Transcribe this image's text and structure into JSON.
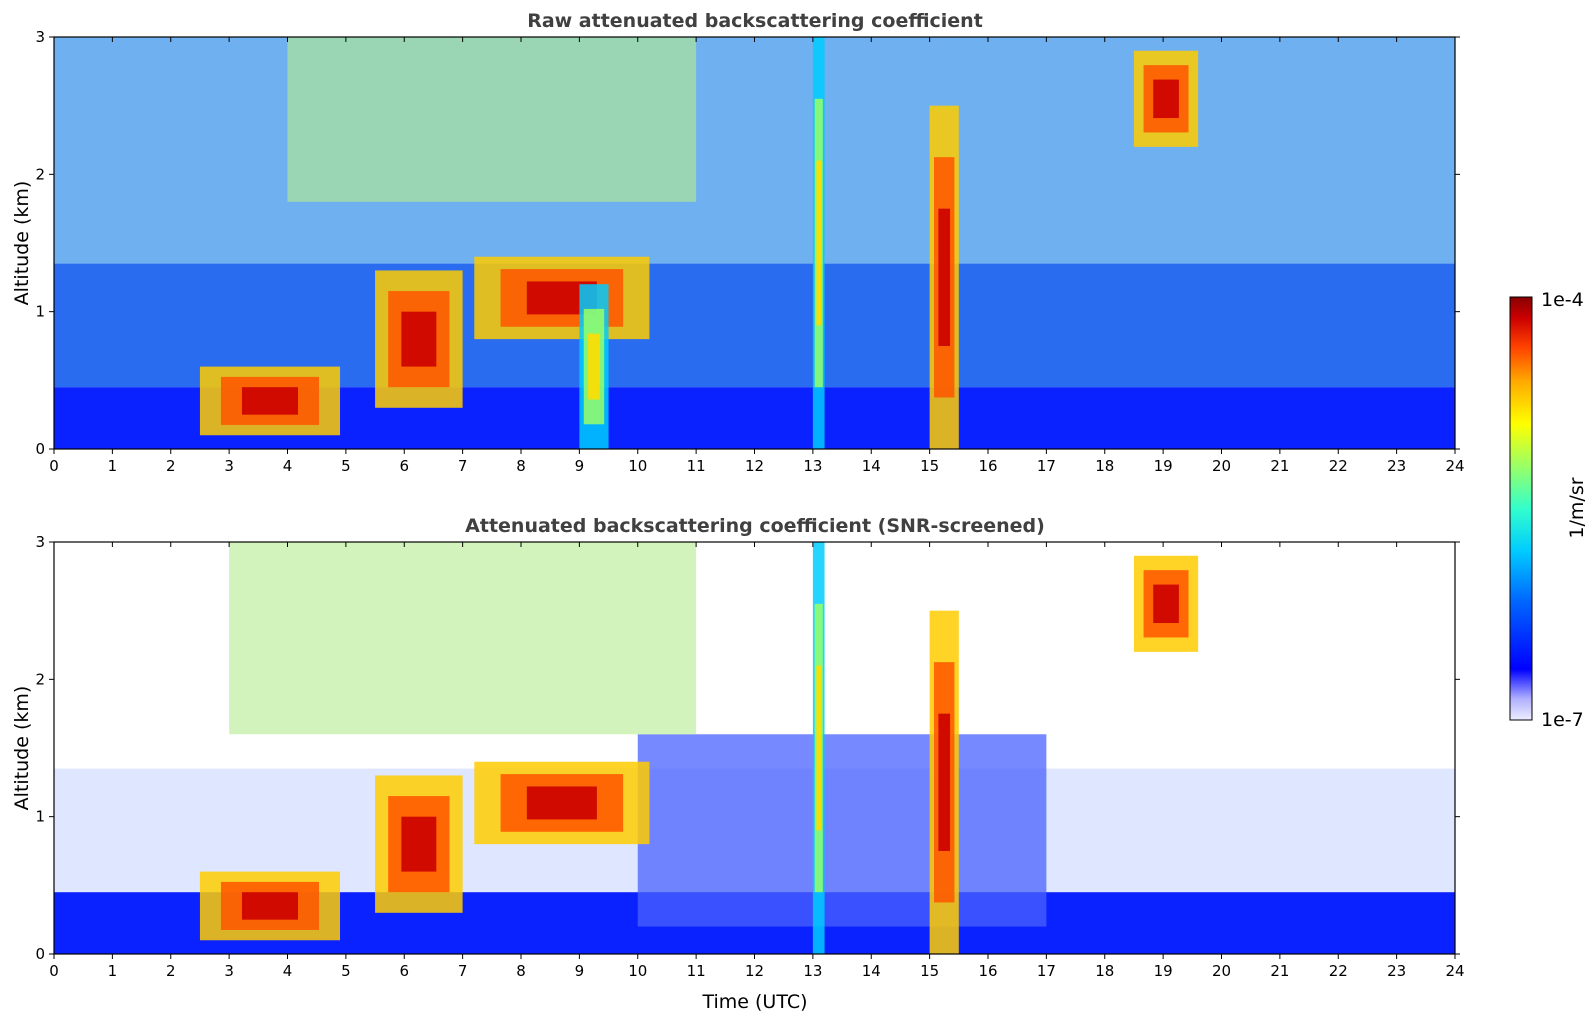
{
  "chart_data": [
    {
      "type": "heatmap",
      "title": "Raw attenuated backscattering coefficient",
      "xlabel": "",
      "ylabel": "Altitude (km)",
      "xlim": [
        0,
        24
      ],
      "ylim": [
        0,
        3
      ],
      "x_ticks": [
        "0",
        "1",
        "2",
        "3",
        "4",
        "5",
        "6",
        "7",
        "8",
        "9",
        "10",
        "11",
        "12",
        "13",
        "14",
        "15",
        "16",
        "17",
        "18",
        "19",
        "20",
        "21",
        "22",
        "23",
        "24"
      ],
      "y_ticks": [
        "0",
        "1",
        "2",
        "3"
      ],
      "features": [
        {
          "t": [
            2.5,
            4.9
          ],
          "alt": [
            0.1,
            0.6
          ],
          "level": "high"
        },
        {
          "t": [
            5.5,
            7.0
          ],
          "alt": [
            0.3,
            1.3
          ],
          "level": "high"
        },
        {
          "t": [
            7.2,
            10.2
          ],
          "alt": [
            0.8,
            1.4
          ],
          "level": "high"
        },
        {
          "t": [
            9.0,
            9.5
          ],
          "alt": [
            0.0,
            1.2
          ],
          "level": "medium"
        },
        {
          "t": [
            13.0,
            13.2
          ],
          "alt": [
            0.0,
            3.0
          ],
          "level": "medium"
        },
        {
          "t": [
            15.0,
            15.5
          ],
          "alt": [
            0.0,
            2.5
          ],
          "level": "high"
        },
        {
          "t": [
            18.5,
            19.6
          ],
          "alt": [
            2.2,
            2.9
          ],
          "level": "high"
        }
      ]
    },
    {
      "type": "heatmap",
      "title": "Attenuated backscattering coefficient (SNR-screened)",
      "xlabel": "Time (UTC)",
      "ylabel": "Altitude (km)",
      "xlim": [
        0,
        24
      ],
      "ylim": [
        0,
        3
      ],
      "x_ticks": [
        "0",
        "1",
        "2",
        "3",
        "4",
        "5",
        "6",
        "7",
        "8",
        "9",
        "10",
        "11",
        "12",
        "13",
        "14",
        "15",
        "16",
        "17",
        "18",
        "19",
        "20",
        "21",
        "22",
        "23",
        "24"
      ],
      "y_ticks": [
        "0",
        "1",
        "2",
        "3"
      ],
      "features": [
        {
          "t": [
            2.5,
            4.9
          ],
          "alt": [
            0.1,
            0.6
          ],
          "level": "high"
        },
        {
          "t": [
            5.5,
            7.0
          ],
          "alt": [
            0.3,
            1.3
          ],
          "level": "high"
        },
        {
          "t": [
            7.2,
            10.2
          ],
          "alt": [
            0.8,
            1.4
          ],
          "level": "high"
        },
        {
          "t": [
            13.0,
            13.2
          ],
          "alt": [
            0.0,
            3.0
          ],
          "level": "medium"
        },
        {
          "t": [
            15.0,
            15.5
          ],
          "alt": [
            0.0,
            2.5
          ],
          "level": "high"
        },
        {
          "t": [
            18.5,
            19.6
          ],
          "alt": [
            2.2,
            2.9
          ],
          "level": "high"
        }
      ]
    }
  ],
  "colorbar": {
    "label": "1/m/sr",
    "max_label": "1e-4",
    "min_label": "1e-7",
    "colors": [
      "#eeeeff",
      "#b0b0ff",
      "#0000ff",
      "#0066ff",
      "#00ccff",
      "#33ffcc",
      "#99ff66",
      "#ffff00",
      "#ffaa00",
      "#ff4400",
      "#cc0000",
      "#880000"
    ]
  }
}
